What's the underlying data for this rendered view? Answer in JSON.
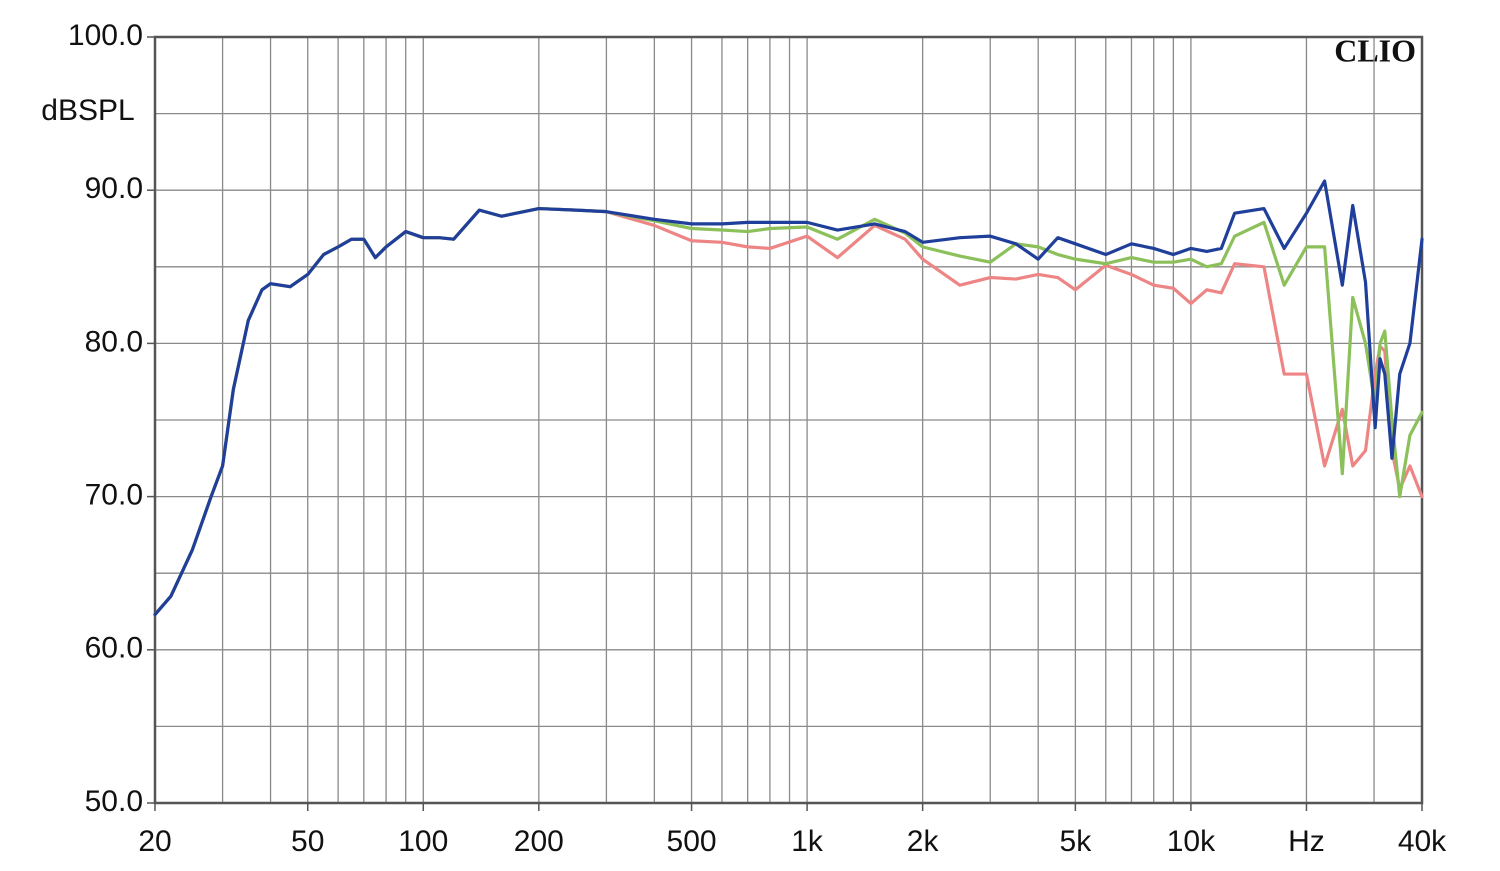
{
  "chart_data": {
    "type": "line",
    "watermark": "CLIO",
    "y_label": "dBSPL",
    "log_x": true,
    "grid": true,
    "xlim": [
      20,
      40000
    ],
    "ylim": [
      50,
      100
    ],
    "xticks": [
      20,
      50,
      100,
      200,
      500,
      {
        "value": 1000,
        "label": "1k"
      },
      {
        "value": 2000,
        "label": "2k"
      },
      {
        "value": 5000,
        "label": "5k"
      },
      {
        "value": 10000,
        "label": "10k"
      },
      {
        "value": 20000,
        "label": "Hz"
      },
      {
        "value": 40000,
        "label": "40k"
      }
    ],
    "x_minor_ticks": [
      30,
      40,
      60,
      70,
      80,
      90,
      300,
      400,
      600,
      700,
      800,
      900,
      3000,
      4000,
      6000,
      7000,
      8000,
      9000,
      30000
    ],
    "yticks": [
      {
        "value": 50,
        "label": "50.0"
      },
      {
        "value": 60,
        "label": "60.0"
      },
      {
        "value": 70,
        "label": "70.0"
      },
      {
        "value": 80,
        "label": "80.0"
      },
      {
        "value": 90,
        "label": "90.0"
      },
      {
        "value": 100,
        "label": "100.0"
      }
    ],
    "y_minor_ticks": [
      55,
      65,
      75,
      85,
      95
    ],
    "x": [
      20,
      22,
      25,
      28,
      30,
      32,
      35,
      38,
      40,
      45,
      50,
      55,
      60,
      65,
      70,
      75,
      80,
      90,
      100,
      110,
      120,
      140,
      160,
      200,
      250,
      300,
      400,
      500,
      600,
      700,
      800,
      1000,
      1200,
      1500,
      1800,
      2000,
      2500,
      3000,
      3500,
      4000,
      4500,
      5000,
      6000,
      7000,
      8000,
      9000,
      10000,
      11000,
      12000,
      13000,
      15500,
      17500,
      20000,
      22300,
      24800,
      26400,
      28500,
      30200,
      31100,
      32000,
      33400,
      35000,
      37200,
      40000
    ],
    "series": [
      {
        "color": "#ee8585",
        "values": [
          62.3,
          63.5,
          66.5,
          70,
          72,
          77,
          81.5,
          83.5,
          83.9,
          83.7,
          84.5,
          85.8,
          86.3,
          86.8,
          86.8,
          85.6,
          86.3,
          87.3,
          86.9,
          86.9,
          86.8,
          88.7,
          88.3,
          88.8,
          88.7,
          88.6,
          87.7,
          86.7,
          86.6,
          86.3,
          86.2,
          87.0,
          85.6,
          87.7,
          86.8,
          85.5,
          83.8,
          84.3,
          84.2,
          84.5,
          84.3,
          83.5,
          85.1,
          84.5,
          83.8,
          83.6,
          82.6,
          83.5,
          83.3,
          85.2,
          85.0,
          78.0,
          78.0,
          72.0,
          75.7,
          72.0,
          73.0,
          78.0,
          79.8,
          79.5,
          73.0,
          70.5,
          72.0,
          70.0
        ]
      },
      {
        "color": "#8cc05a",
        "values": [
          62.3,
          63.5,
          66.5,
          70,
          72,
          77,
          81.5,
          83.5,
          83.9,
          83.7,
          84.5,
          85.8,
          86.3,
          86.8,
          86.8,
          85.6,
          86.3,
          87.3,
          86.9,
          86.9,
          86.8,
          88.7,
          88.3,
          88.8,
          88.7,
          88.6,
          88.0,
          87.5,
          87.4,
          87.3,
          87.5,
          87.6,
          86.8,
          88.1,
          87.2,
          86.3,
          85.7,
          85.3,
          86.5,
          86.3,
          85.8,
          85.5,
          85.2,
          85.6,
          85.3,
          85.3,
          85.5,
          85.0,
          85.2,
          87.0,
          87.9,
          83.8,
          86.3,
          86.3,
          71.5,
          83.0,
          80.0,
          76.0,
          80.0,
          80.8,
          75.0,
          70.0,
          74.0,
          75.5
        ]
      },
      {
        "color": "#1f3f9a",
        "values": [
          62.3,
          63.5,
          66.5,
          70,
          72,
          77,
          81.5,
          83.5,
          83.9,
          83.7,
          84.5,
          85.8,
          86.3,
          86.8,
          86.8,
          85.6,
          86.3,
          87.3,
          86.9,
          86.9,
          86.8,
          88.7,
          88.3,
          88.8,
          88.7,
          88.6,
          88.1,
          87.8,
          87.8,
          87.9,
          87.9,
          87.9,
          87.4,
          87.8,
          87.3,
          86.6,
          86.9,
          87.0,
          86.5,
          85.5,
          86.9,
          86.5,
          85.8,
          86.5,
          86.2,
          85.8,
          86.2,
          86.0,
          86.2,
          88.5,
          88.8,
          86.2,
          88.5,
          90.6,
          83.8,
          89.0,
          84.0,
          74.5,
          79.0,
          78.0,
          72.5,
          78.0,
          80.0,
          86.8
        ]
      }
    ]
  }
}
